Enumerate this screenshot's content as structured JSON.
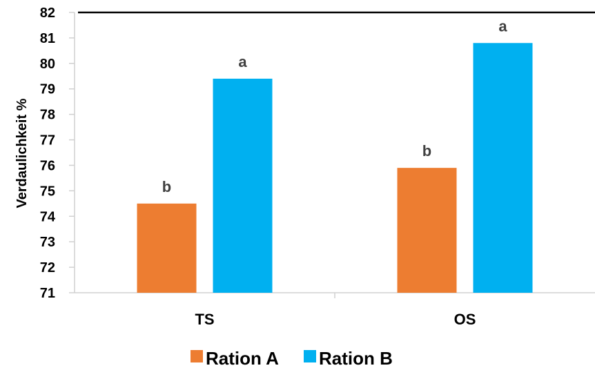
{
  "chart_data": {
    "type": "bar",
    "categories": [
      "TS",
      "OS"
    ],
    "series": [
      {
        "name": "Ration A",
        "values": [
          74.5,
          75.9
        ],
        "labels": [
          "b",
          "b"
        ],
        "color": "#ED7D31"
      },
      {
        "name": "Ration B",
        "values": [
          79.4,
          80.8
        ],
        "labels": [
          "a",
          "a"
        ],
        "color": "#00B0F0"
      }
    ],
    "title": "",
    "xlabel": "",
    "ylabel": "Verdaulichkeit  %",
    "ylim": [
      71,
      82
    ],
    "yticks": [
      "71",
      "72",
      "73",
      "74",
      "75",
      "76",
      "77",
      "78",
      "79",
      "80",
      "81",
      "82"
    ],
    "grid": false,
    "legend": "bottom"
  }
}
